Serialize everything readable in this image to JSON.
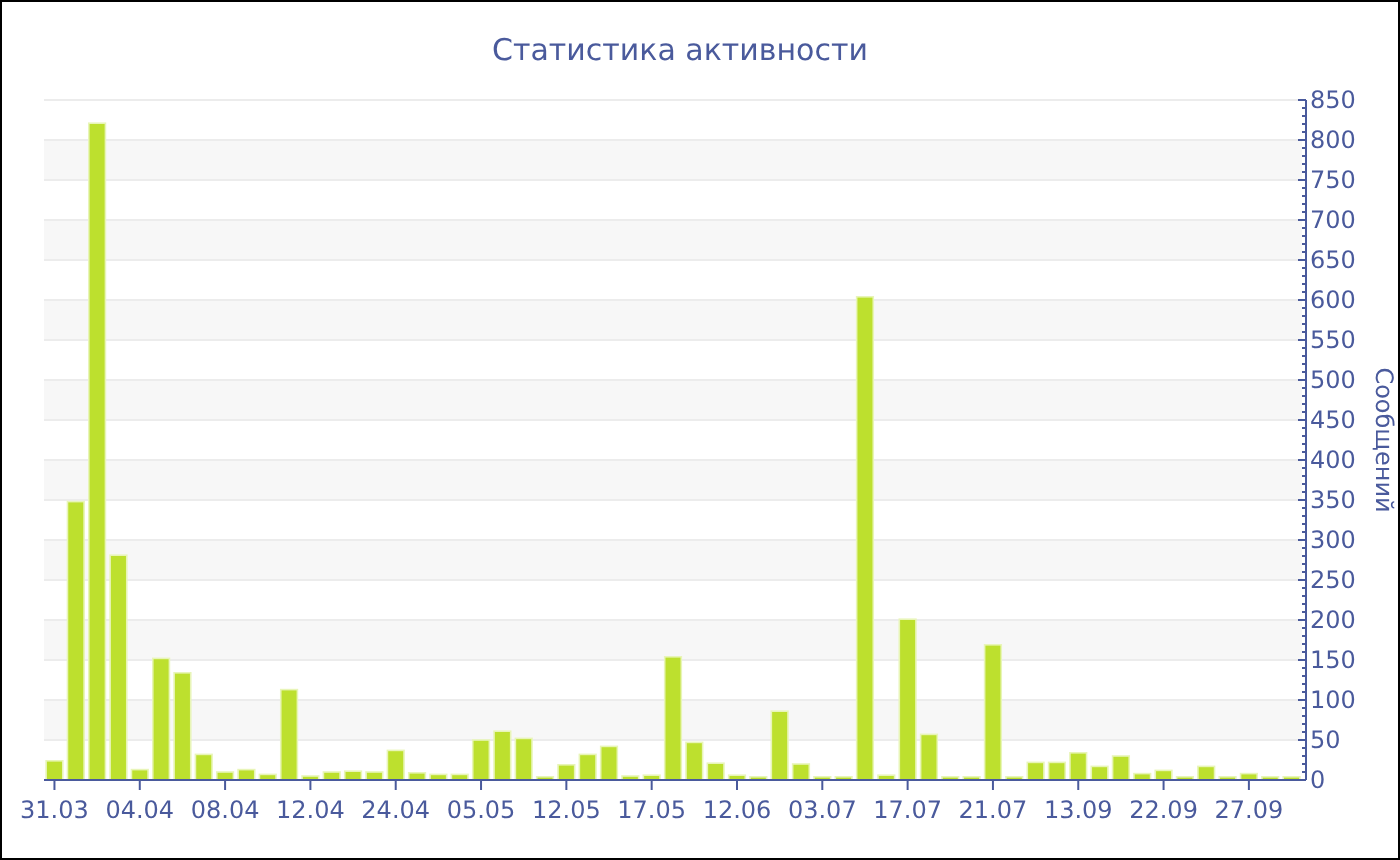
{
  "chart_data": {
    "type": "bar",
    "title": "Статистика активности",
    "ylabel": "Сообщений",
    "categories": [
      "31.03",
      null,
      null,
      null,
      "04.04",
      null,
      null,
      null,
      "08.04",
      null,
      null,
      null,
      "12.04",
      null,
      null,
      null,
      "24.04",
      null,
      null,
      null,
      "05.05",
      null,
      null,
      null,
      "12.05",
      null,
      null,
      null,
      "17.05",
      null,
      null,
      null,
      "12.06",
      null,
      null,
      null,
      "03.07",
      null,
      null,
      null,
      "17.07",
      null,
      null,
      null,
      "21.07",
      null,
      null,
      null,
      "13.09",
      null,
      null,
      null,
      "22.09",
      null,
      null,
      null,
      "27.09",
      null,
      null
    ],
    "values": [
      24,
      348,
      821,
      281,
      13,
      152,
      134,
      32,
      10,
      13,
      7,
      113,
      5,
      10,
      11,
      10,
      37,
      9,
      7,
      7,
      50,
      61,
      52,
      4,
      19,
      32,
      42,
      5,
      6,
      154,
      47,
      21,
      6,
      4,
      86,
      20,
      4,
      4,
      604,
      6,
      201,
      57,
      4,
      4,
      169,
      4,
      22,
      22,
      34,
      17,
      30,
      8,
      12,
      4,
      17,
      4,
      8,
      4,
      4
    ],
    "color": "#bde02e",
    "ylim": [
      0,
      850
    ],
    "yticks": [
      0,
      50,
      100,
      150,
      200,
      250,
      300,
      350,
      400,
      450,
      500,
      550,
      600,
      650,
      700,
      750,
      800,
      850
    ],
    "grid": "y"
  }
}
